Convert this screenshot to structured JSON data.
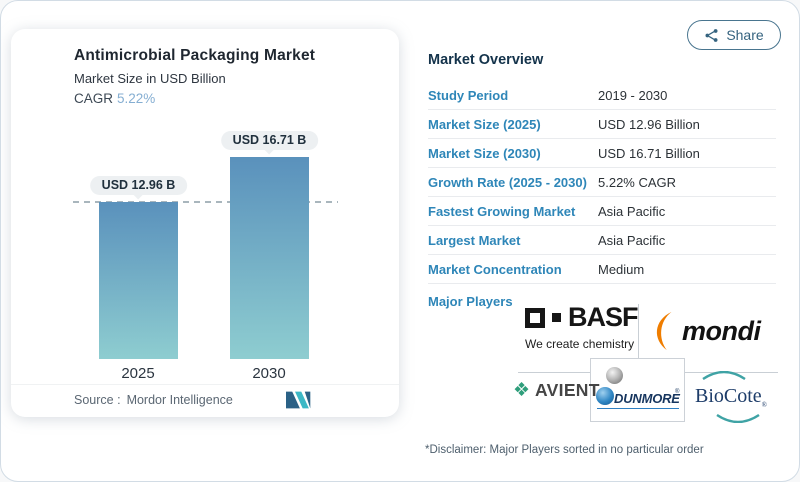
{
  "page": {
    "share_label": "Share"
  },
  "left_card": {
    "title": "Antimicrobial Packaging Market",
    "subtitle": "Market Size in USD Billion",
    "cagr_label": "CAGR",
    "cagr_value": "5.22%",
    "source_label": "Source :",
    "source_value": "Mordor Intelligence"
  },
  "chart_data": {
    "type": "bar",
    "title": "Antimicrobial Packaging Market",
    "subtitle": "Market Size in USD Billion",
    "unit": "USD Billion",
    "categories": [
      "2025",
      "2030"
    ],
    "values": [
      12.96,
      16.71
    ],
    "bar_labels": [
      "USD 12.96 B",
      "USD 16.71 B"
    ],
    "cagr_percent": 5.22,
    "reference_line": {
      "at_value": 12.96,
      "style": "dashed"
    },
    "bar_gradient": [
      "#5a91bc",
      "#8ecdd0"
    ],
    "ylim": [
      0,
      16.71
    ],
    "grid": false,
    "legend": "none",
    "source": "Mordor Intelligence"
  },
  "overview": {
    "heading": "Market Overview",
    "rows": [
      {
        "label": "Study Period",
        "value": "2019 - 2030"
      },
      {
        "label": "Market Size (2025)",
        "value": "USD 12.96 Billion"
      },
      {
        "label": "Market Size (2030)",
        "value": "USD 16.71 Billion"
      },
      {
        "label": "Growth Rate (2025 - 2030)",
        "value": "5.22% CAGR"
      },
      {
        "label": "Fastest Growing Market",
        "value": "Asia Pacific"
      },
      {
        "label": "Largest Market",
        "value": "Asia Pacific"
      },
      {
        "label": "Market Concentration",
        "value": "Medium"
      }
    ],
    "major_players_label": "Major Players",
    "players": {
      "basf": "BASF",
      "basf_tagline": "We create chemistry",
      "mondi": "mondi",
      "avient": "AVIENT",
      "dunmore": "DUNMORE",
      "dunmore_reg": "®",
      "biocote": "BioCote",
      "biocote_reg": "®"
    },
    "disclaimer": "*Disclaimer: Major Players sorted in no particular order"
  },
  "icons": {
    "share": "share-nodes-icon",
    "avient_mark": "❖"
  },
  "colors": {
    "label_blue": "#2e86b8",
    "heading_navy": "#14334b",
    "cagr_light_blue": "#85aed2",
    "bar_top": "#5a91bc",
    "bar_bottom": "#8ecdd0",
    "mondi_orange": "#ef7d00",
    "mordor_dark": "#2b6186",
    "mordor_teal": "#3cb8c6"
  }
}
